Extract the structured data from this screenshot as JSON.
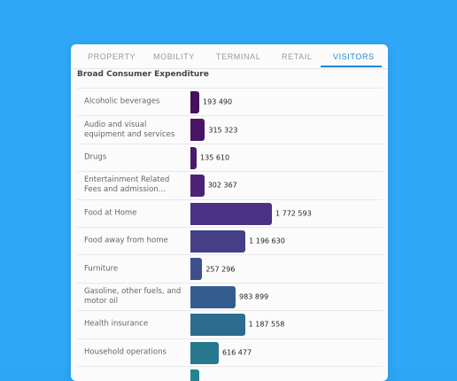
{
  "tabs": [
    "PROPERTY",
    "MOBILITY",
    "TERMINAL",
    "RETAIL",
    "VISITORS"
  ],
  "active_tab": "VISITORS",
  "section_title": "Broad Consumer Expenditure",
  "chart_data": {
    "type": "bar",
    "orientation": "horizontal",
    "title": "Broad Consumer Expenditure",
    "categories": [
      "Alcoholic beverages",
      "Audio and visual equipment and services",
      "Drugs",
      "Entertainment Related Fees and admission...",
      "Food at Home",
      "Food away from home",
      "Furniture",
      "Gasoline, other fuels, and motor oil",
      "Health insurance",
      "Household operations",
      ""
    ],
    "values": [
      193490,
      315323,
      135610,
      302367,
      1772593,
      1196630,
      257296,
      983899,
      1187558,
      616477,
      null
    ],
    "labels": [
      "193 490",
      "315 323",
      "135 610",
      "302 367",
      "1 772 593",
      "1 196 630",
      "257 296",
      "983 899",
      "1 187 558",
      "616 477",
      ""
    ],
    "colors": [
      "#45105c",
      "#4a1466",
      "#4a1a6e",
      "#4b2478",
      "#4b3184",
      "#453f88",
      "#3e4f8d",
      "#355c8e",
      "#2d6b8f",
      "#27788e",
      "#21878d"
    ],
    "xlim": [
      0,
      1850000
    ]
  }
}
